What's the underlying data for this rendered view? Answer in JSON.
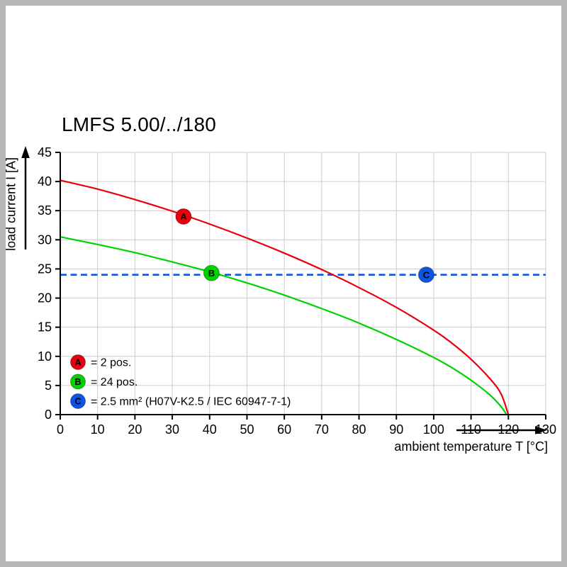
{
  "frame": {
    "border_color": "#b4b7b6"
  },
  "chart_data": {
    "type": "line",
    "title": "LMFS 5.00/../180",
    "xlabel": "ambient temperature T [°C]",
    "ylabel": "load current I [A]",
    "xlim": [
      0,
      130
    ],
    "ylim": [
      0,
      45
    ],
    "xtick_step": 10,
    "ytick_step": 5,
    "grid": true,
    "grid_color": "#cccccc",
    "axis_color": "#000000",
    "legend_position": "bottom-left",
    "series": [
      {
        "name": "A",
        "legend_label": "= 2 pos.",
        "color": "#e8000e",
        "dash": false,
        "points": [
          [
            0,
            40.2
          ],
          [
            10,
            38.7
          ],
          [
            20,
            36.9
          ],
          [
            30,
            34.9
          ],
          [
            40,
            32.7
          ],
          [
            50,
            30.3
          ],
          [
            60,
            27.7
          ],
          [
            70,
            24.9
          ],
          [
            80,
            21.8
          ],
          [
            90,
            18.4
          ],
          [
            100,
            14.5
          ],
          [
            105,
            12.2
          ],
          [
            110,
            9.5
          ],
          [
            115,
            6.2
          ],
          [
            118,
            3.6
          ],
          [
            120,
            0
          ]
        ]
      },
      {
        "name": "B",
        "legend_label": "= 24 pos.",
        "color": "#00d200",
        "dash": false,
        "points": [
          [
            0,
            30.5
          ],
          [
            10,
            29.2
          ],
          [
            20,
            27.8
          ],
          [
            30,
            26.2
          ],
          [
            40,
            24.5
          ],
          [
            50,
            22.6
          ],
          [
            60,
            20.5
          ],
          [
            70,
            18.2
          ],
          [
            80,
            15.7
          ],
          [
            90,
            12.9
          ],
          [
            100,
            9.8
          ],
          [
            105,
            8.0
          ],
          [
            110,
            5.9
          ],
          [
            115,
            3.4
          ],
          [
            118,
            1.4
          ],
          [
            119.5,
            0
          ]
        ]
      },
      {
        "name": "C",
        "legend_label": "= 2.5 mm² (H07V-K2.5 / IEC 60947-7-1)",
        "color": "#0d55e6",
        "dash": true,
        "points": [
          [
            0,
            24
          ],
          [
            130,
            24
          ]
        ]
      }
    ],
    "markers": [
      {
        "label": "A",
        "x": 33,
        "y": 34,
        "color": "#e8000e"
      },
      {
        "label": "B",
        "x": 40.5,
        "y": 24.3,
        "color": "#00d200"
      },
      {
        "label": "C",
        "x": 98,
        "y": 24,
        "color": "#0d55e6"
      }
    ]
  }
}
